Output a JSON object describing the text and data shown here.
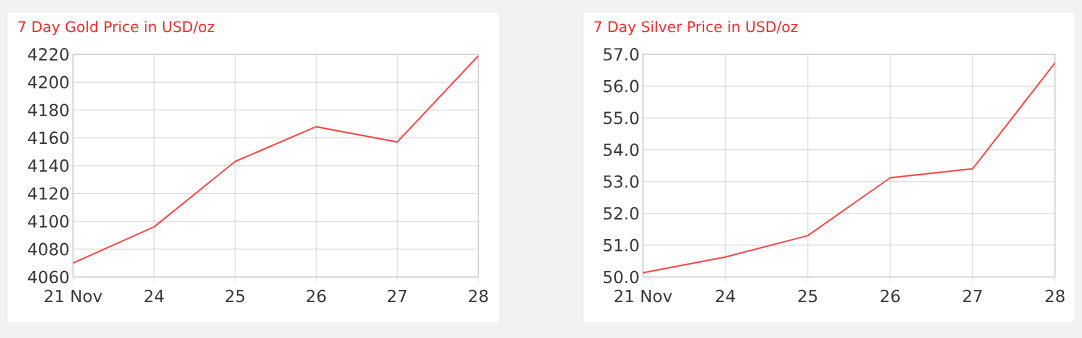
{
  "chart_data": [
    {
      "type": "line",
      "title": "7 Day Gold Price in USD/oz",
      "categories": [
        "21 Nov",
        "24",
        "25",
        "26",
        "27",
        "28"
      ],
      "values": [
        4070,
        4096,
        4143,
        4168,
        4157,
        4219
      ],
      "color": "#ff4040",
      "ylim": [
        4060,
        4220
      ],
      "yticks": [
        4060,
        4080,
        4100,
        4120,
        4140,
        4160,
        4180,
        4200,
        4220
      ],
      "grid": true
    },
    {
      "type": "line",
      "title": "7 Day Silver Price in USD/oz",
      "categories": [
        "21 Nov",
        "24",
        "25",
        "26",
        "27",
        "28"
      ],
      "values": [
        50.13,
        50.63,
        51.3,
        53.12,
        53.4,
        56.73
      ],
      "color": "#ff4040",
      "ylim": [
        50,
        57
      ],
      "yticks": [
        {
          "value": 50,
          "label": "50.0"
        },
        {
          "value": 51,
          "label": "51.0"
        },
        {
          "value": 52,
          "label": "52.0"
        },
        {
          "value": 53,
          "label": "53.0"
        },
        {
          "value": 54,
          "label": "54.0"
        },
        {
          "value": 55,
          "label": "55.0"
        },
        {
          "value": 56,
          "label": "56.0"
        },
        {
          "value": 57,
          "label": "57.0"
        }
      ],
      "grid": true
    }
  ]
}
